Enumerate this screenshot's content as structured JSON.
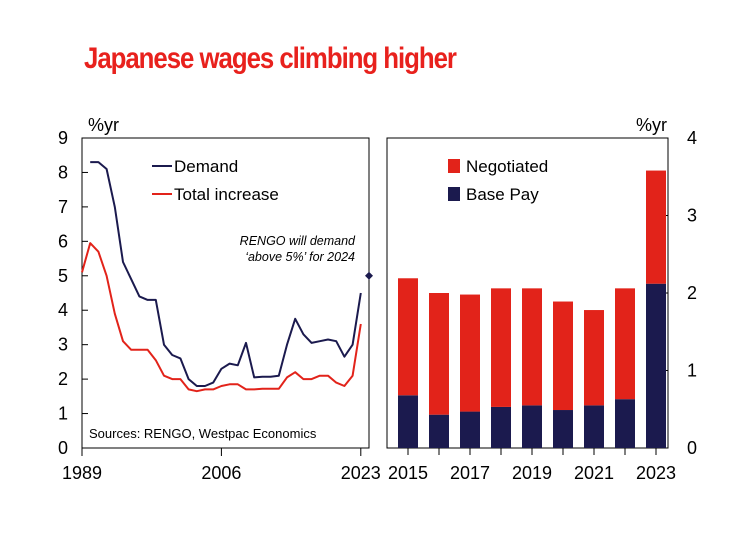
{
  "title": "Japanese wages climbing higher",
  "colors": {
    "title": "#e8211d",
    "navy": "#1b1a4e",
    "red": "#e2231a"
  },
  "chart_data": [
    {
      "type": "line",
      "unit_label": "%yr",
      "ylim": [
        0,
        9
      ],
      "yticks": [
        "0",
        "1",
        "2",
        "3",
        "4",
        "5",
        "6",
        "7",
        "8",
        "9"
      ],
      "xlim": [
        1989,
        2024
      ],
      "xticks": [
        "1989",
        "2006",
        "2023"
      ],
      "legend_position": "top-left",
      "series": [
        {
          "name": "Demand",
          "color": "#1b1a4e",
          "x": [
            1990,
            1991,
            1992,
            1993,
            1994,
            1995,
            1996,
            1997,
            1998,
            1999,
            2000,
            2001,
            2002,
            2003,
            2004,
            2005,
            2006,
            2007,
            2008,
            2009,
            2010,
            2011,
            2012,
            2013,
            2014,
            2015,
            2016,
            2017,
            2018,
            2019,
            2020,
            2021,
            2022,
            2023
          ],
          "y": [
            8.3,
            8.3,
            8.1,
            7.0,
            5.4,
            4.9,
            4.4,
            4.3,
            4.3,
            3.0,
            2.7,
            2.6,
            2.0,
            1.8,
            1.8,
            1.9,
            2.3,
            2.45,
            2.4,
            3.05,
            2.05,
            2.07,
            2.07,
            2.1,
            3.0,
            3.75,
            3.3,
            3.05,
            3.1,
            3.15,
            3.1,
            2.65,
            3.0,
            4.5
          ]
        },
        {
          "name": "Total increase",
          "color": "#e2231a",
          "x": [
            1989,
            1990,
            1991,
            1992,
            1993,
            1994,
            1995,
            1996,
            1997,
            1998,
            1999,
            2000,
            2001,
            2002,
            2003,
            2004,
            2005,
            2006,
            2007,
            2008,
            2009,
            2010,
            2011,
            2012,
            2013,
            2014,
            2015,
            2016,
            2017,
            2018,
            2019,
            2020,
            2021,
            2022,
            2023
          ],
          "y": [
            5.1,
            5.95,
            5.7,
            5.0,
            3.9,
            3.1,
            2.85,
            2.85,
            2.85,
            2.55,
            2.1,
            2.0,
            2.0,
            1.7,
            1.65,
            1.7,
            1.7,
            1.8,
            1.85,
            1.85,
            1.7,
            1.7,
            1.72,
            1.72,
            1.72,
            2.05,
            2.2,
            2.0,
            2.0,
            2.1,
            2.1,
            1.9,
            1.8,
            2.1,
            3.6
          ]
        }
      ],
      "marker": {
        "x": 2024,
        "y": 5.0,
        "label": [
          "RENGO will demand",
          "‘above 5%’ for 2024"
        ]
      },
      "source": "Sources: RENGO, Westpac Economics"
    },
    {
      "type": "bar",
      "stacked": true,
      "unit_label": "%yr",
      "ylim": [
        0,
        4
      ],
      "yticks": [
        "0",
        "1",
        "2",
        "3",
        "4"
      ],
      "categories": [
        2015,
        2016,
        2017,
        2018,
        2019,
        2020,
        2021,
        2022,
        2023
      ],
      "xticks": [
        "2015",
        "2017",
        "2019",
        "2021",
        "2023"
      ],
      "legend_position": "top-left",
      "series": [
        {
          "name": "Base Pay",
          "color": "#1b1a4e",
          "values": [
            0.68,
            0.43,
            0.47,
            0.53,
            0.55,
            0.49,
            0.55,
            0.63,
            2.12
          ]
        },
        {
          "name": "Negotiated",
          "color": "#e2231a",
          "values": [
            1.51,
            1.57,
            1.51,
            1.53,
            1.51,
            1.4,
            1.23,
            1.43,
            1.46
          ]
        }
      ],
      "legend_order": [
        "Negotiated",
        "Base Pay"
      ]
    }
  ]
}
